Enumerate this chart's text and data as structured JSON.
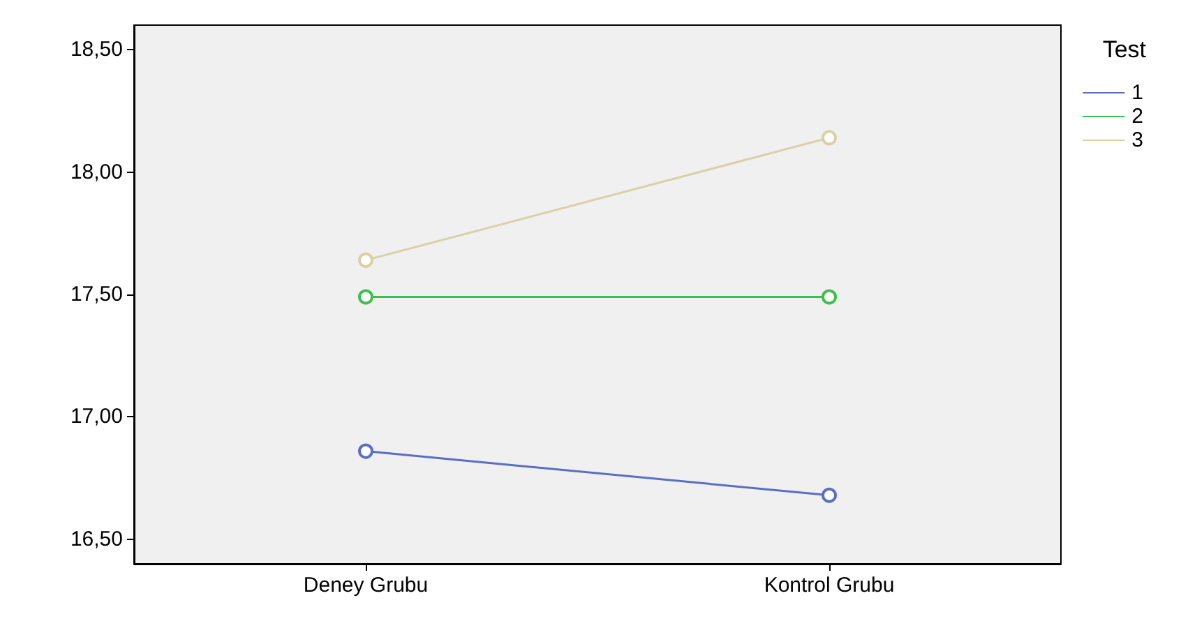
{
  "chart_data": {
    "type": "line",
    "legend_title": "Test",
    "categories": [
      "Deney Grubu",
      "Kontrol Grubu"
    ],
    "series": [
      {
        "name": "1",
        "color": "#5a6ec4",
        "values": [
          16.86,
          16.68
        ]
      },
      {
        "name": "2",
        "color": "#3cbf4c",
        "values": [
          17.49,
          17.49
        ]
      },
      {
        "name": "3",
        "color": "#d9d0a6",
        "values": [
          17.64,
          18.14
        ]
      }
    ],
    "ylim": [
      16.4,
      18.6
    ],
    "yticks": [
      {
        "value": 16.5,
        "label": "16,50"
      },
      {
        "value": 17,
        "label": "17,00"
      },
      {
        "value": 17.5,
        "label": "17,50"
      },
      {
        "value": 18,
        "label": "18,00"
      },
      {
        "value": 18.5,
        "label": "18,50"
      }
    ],
    "grid": false,
    "legend": "right",
    "marker": "circle",
    "line_style": "solid"
  }
}
